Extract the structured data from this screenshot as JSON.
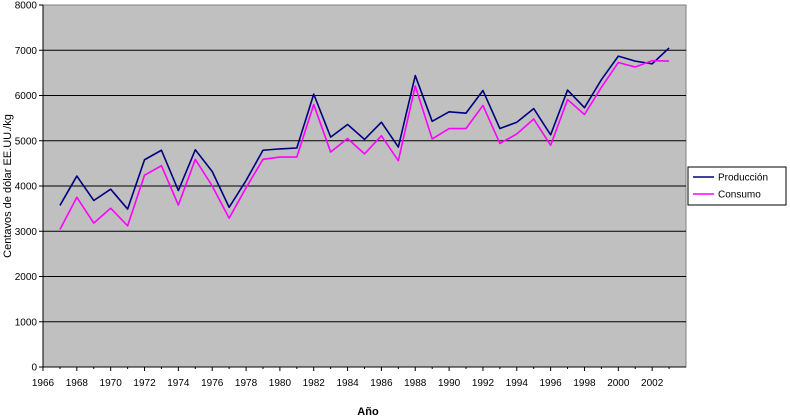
{
  "chart_data": {
    "type": "line",
    "title": "",
    "xlabel": "Año",
    "ylabel": "Centavos de dólar EE.UU./kg",
    "xlim": [
      1966,
      2004
    ],
    "ylim": [
      0,
      8000
    ],
    "x_ticks": [
      1966,
      1968,
      1970,
      1972,
      1974,
      1976,
      1978,
      1980,
      1982,
      1984,
      1986,
      1988,
      1990,
      1992,
      1994,
      1996,
      1998,
      2000,
      2002
    ],
    "y_ticks": [
      0,
      1000,
      2000,
      3000,
      4000,
      5000,
      6000,
      7000,
      8000
    ],
    "grid": true,
    "legend_position": "right",
    "x": [
      1967,
      1968,
      1969,
      1970,
      1971,
      1972,
      1973,
      1974,
      1975,
      1976,
      1977,
      1978,
      1979,
      1980,
      1981,
      1982,
      1983,
      1984,
      1985,
      1986,
      1987,
      1988,
      1989,
      1990,
      1991,
      1992,
      1993,
      1994,
      1995,
      1996,
      1997,
      1998,
      1999,
      2000,
      2001,
      2002,
      2003
    ],
    "series": [
      {
        "name": "Producción",
        "color": "#000080",
        "values": [
          3570,
          4220,
          3680,
          3930,
          3490,
          4580,
          4790,
          3900,
          4800,
          4320,
          3530,
          4120,
          4790,
          4820,
          4840,
          6030,
          5080,
          5360,
          5030,
          5410,
          4860,
          6440,
          5430,
          5640,
          5610,
          6110,
          5270,
          5410,
          5710,
          5130,
          6120,
          5730,
          6350,
          6870,
          6760,
          6700,
          7050
        ]
      },
      {
        "name": "Consumo",
        "color": "#ff00ff",
        "values": [
          3040,
          3750,
          3180,
          3510,
          3120,
          4240,
          4450,
          3580,
          4590,
          4000,
          3290,
          3960,
          4590,
          4640,
          4640,
          5800,
          4750,
          5050,
          4710,
          5110,
          4560,
          6210,
          5040,
          5270,
          5270,
          5780,
          4940,
          5150,
          5480,
          4900,
          5910,
          5580,
          6180,
          6730,
          6630,
          6770,
          6760
        ]
      }
    ]
  }
}
